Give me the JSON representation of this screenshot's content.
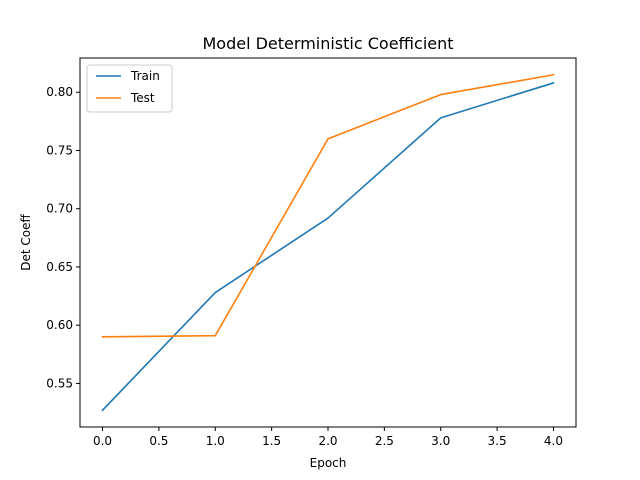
{
  "chart_data": {
    "type": "line",
    "title": "Model Deterministic Coefficient",
    "xlabel": "Epoch",
    "ylabel": "Det Coeff",
    "x": [
      0,
      1,
      2,
      3,
      4
    ],
    "series": [
      {
        "name": "Train",
        "color": "#1f77b4",
        "values": [
          0.527,
          0.628,
          0.692,
          0.778,
          0.808
        ]
      },
      {
        "name": "Test",
        "color": "#ff7f0e",
        "values": [
          0.59,
          0.591,
          0.76,
          0.798,
          0.815
        ]
      }
    ],
    "xlim": [
      -0.2,
      4.2
    ],
    "ylim": [
      0.5126,
      0.8294
    ],
    "xticks": [
      0,
      0.5,
      1,
      1.5,
      2,
      2.5,
      3,
      3.5,
      4
    ],
    "xtick_labels": [
      "0.0",
      "0.5",
      "1.0",
      "1.5",
      "2.0",
      "2.5",
      "3.0",
      "3.5",
      "4.0"
    ],
    "yticks": [
      0.55,
      0.6,
      0.65,
      0.7,
      0.75,
      0.8
    ],
    "ytick_labels": [
      "0.55",
      "0.60",
      "0.65",
      "0.70",
      "0.75",
      "0.80"
    ],
    "grid": false,
    "legend": "upper-left"
  }
}
